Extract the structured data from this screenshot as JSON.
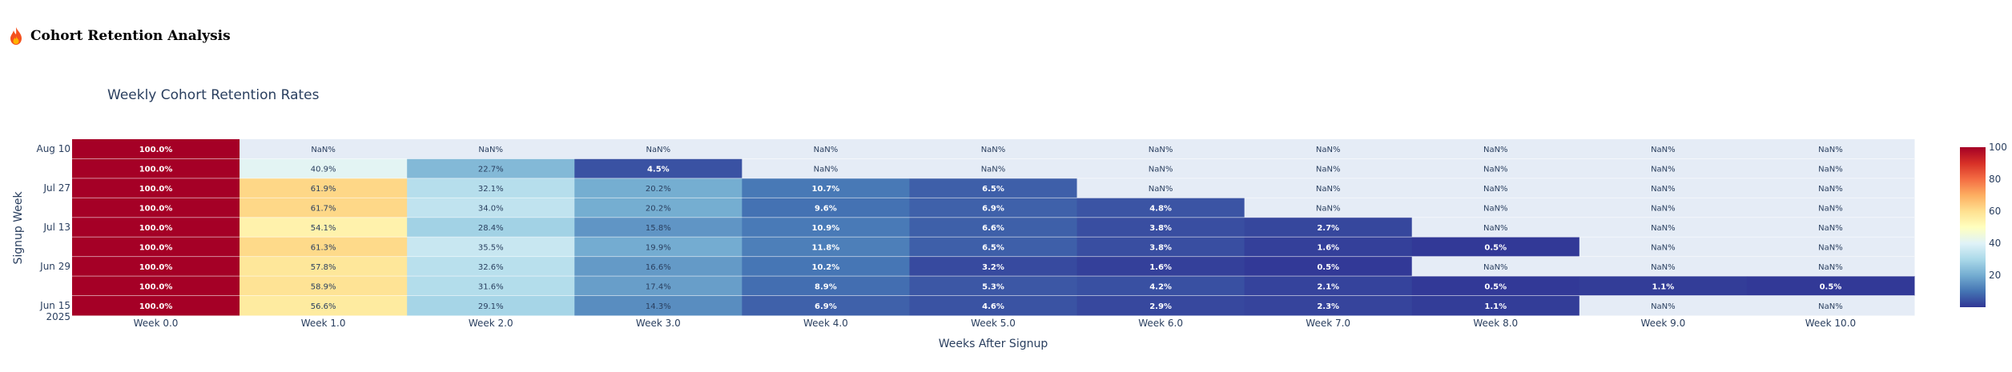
{
  "app": {
    "title": "Cohort Retention Analysis",
    "icon": "flame-icon"
  },
  "chart_data": {
    "type": "heatmap",
    "title": "Weekly Cohort Retention Rates",
    "xlabel": "Weeks After Signup",
    "ylabel": "Signup Week",
    "x_categories": [
      "Week 0.0",
      "Week 1.0",
      "Week 2.0",
      "Week 3.0",
      "Week 4.0",
      "Week 5.0",
      "Week 6.0",
      "Week 7.0",
      "Week 8.0",
      "Week 9.0",
      "Week 10.0"
    ],
    "y_tick_labels": [
      "Aug 10",
      "Jul 27",
      "Jul 13",
      "Jun 29",
      "Jun 15\n2025"
    ],
    "rows_top_to_bottom": [
      [
        100.0,
        null,
        null,
        null,
        null,
        null,
        null,
        null,
        null,
        null,
        null
      ],
      [
        100.0,
        40.9,
        22.7,
        4.5,
        null,
        null,
        null,
        null,
        null,
        null,
        null
      ],
      [
        100.0,
        61.9,
        32.1,
        20.2,
        10.7,
        6.5,
        null,
        null,
        null,
        null,
        null
      ],
      [
        100.0,
        61.7,
        34.0,
        20.2,
        9.6,
        6.9,
        4.8,
        null,
        null,
        null,
        null
      ],
      [
        100.0,
        54.1,
        28.4,
        15.8,
        10.9,
        6.6,
        3.8,
        2.7,
        null,
        null,
        null
      ],
      [
        100.0,
        61.3,
        35.5,
        19.9,
        11.8,
        6.5,
        3.8,
        1.6,
        0.5,
        null,
        null
      ],
      [
        100.0,
        57.8,
        32.6,
        16.6,
        10.2,
        3.2,
        1.6,
        0.5,
        null,
        null,
        null
      ],
      [
        100.0,
        58.9,
        31.6,
        17.4,
        8.9,
        5.3,
        4.2,
        2.1,
        0.5,
        1.1,
        0.5
      ],
      [
        100.0,
        56.6,
        29.1,
        14.3,
        6.9,
        4.6,
        2.9,
        2.3,
        1.1,
        null,
        null
      ]
    ],
    "missing_label": "NaN%",
    "value_suffix": "%",
    "zrange": [
      0,
      100
    ],
    "colorbar_ticks": [
      "100",
      "80",
      "60",
      "40",
      "20"
    ],
    "colorscale": [
      "#313695",
      "#4575b4",
      "#74add1",
      "#abd9e9",
      "#e0f3f8",
      "#ffffbf",
      "#fee090",
      "#fdae61",
      "#f46d43",
      "#d73027",
      "#a50026"
    ],
    "missing_color": "#e5ecf6",
    "text_color": "#2a3f5f"
  }
}
